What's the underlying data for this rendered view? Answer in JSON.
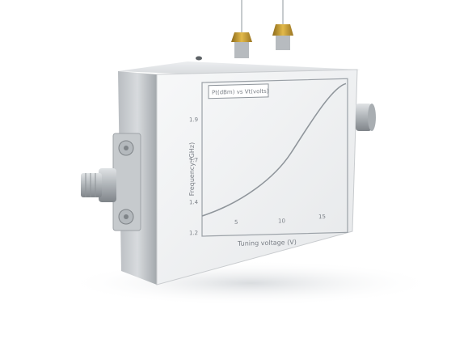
{
  "photo": {
    "subject": "rf-module-with-sma-connectors",
    "colors": {
      "background": "#ffffff",
      "shadow": "#e7e9ec",
      "aluminium_light": "#e3e5e7",
      "aluminium_mid": "#bfc3c6",
      "aluminium_dark": "#8f9498",
      "label_face": "#f4f5f6",
      "brass": "#c69a2e",
      "plot_line": "#9aa0a6"
    }
  },
  "plot_label": {
    "legend_text": "Pt(dBm) vs Vt(volts)",
    "ylabel": "Frequency (GHz)",
    "xlabel": "Tuning voltage (V)",
    "y_ticks": [
      "1.9",
      "1.7",
      "1.4",
      "1.2"
    ],
    "x_ticks": [
      "5",
      "10",
      "15"
    ]
  }
}
